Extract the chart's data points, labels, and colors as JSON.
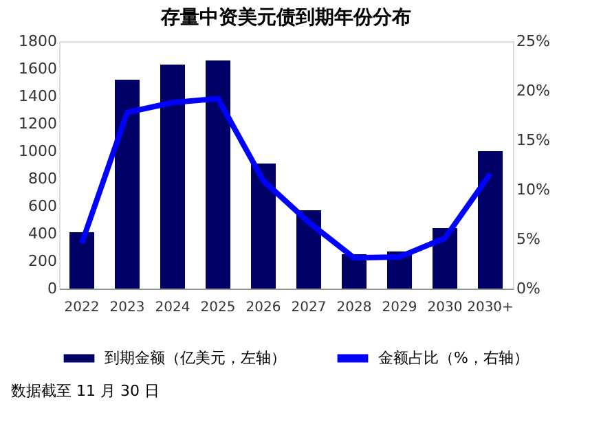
{
  "chart_data": {
    "type": "bar",
    "title": "存量中资美元债到期年份分布",
    "categories": [
      "2022",
      "2023",
      "2024",
      "2025",
      "2026",
      "2027",
      "2028",
      "2029",
      "2030",
      "2030+"
    ],
    "series": [
      {
        "name": "到期金额（亿美元，左轴）",
        "color": "#000066",
        "values": [
          410,
          1520,
          1630,
          1660,
          910,
          570,
          250,
          270,
          440,
          1000
        ]
      },
      {
        "name": "金额占比（%，右轴）",
        "color": "#0000ff",
        "type": "line",
        "axis": "y2",
        "values": [
          4.6,
          17.8,
          18.8,
          19.2,
          10.9,
          6.7,
          3.1,
          3.2,
          5.1,
          11.6
        ]
      }
    ],
    "ylim": [
      0,
      1800
    ],
    "yticks": [
      0,
      200,
      400,
      600,
      800,
      1000,
      1200,
      1400,
      1600,
      1800
    ],
    "y2lim": [
      0,
      25
    ],
    "y2ticks": [
      {
        "value": 0,
        "label": "0%"
      },
      {
        "value": 5,
        "label": "5%"
      },
      {
        "value": 10,
        "label": "10%"
      },
      {
        "value": 15,
        "label": "15%"
      },
      {
        "value": 20,
        "label": "20%"
      },
      {
        "value": 25,
        "label": "25%"
      }
    ],
    "grid": false,
    "legend": "bottom",
    "marker": "none",
    "line_style": "solid",
    "annotations": [
      "数据截至 11 月 30 日"
    ]
  }
}
